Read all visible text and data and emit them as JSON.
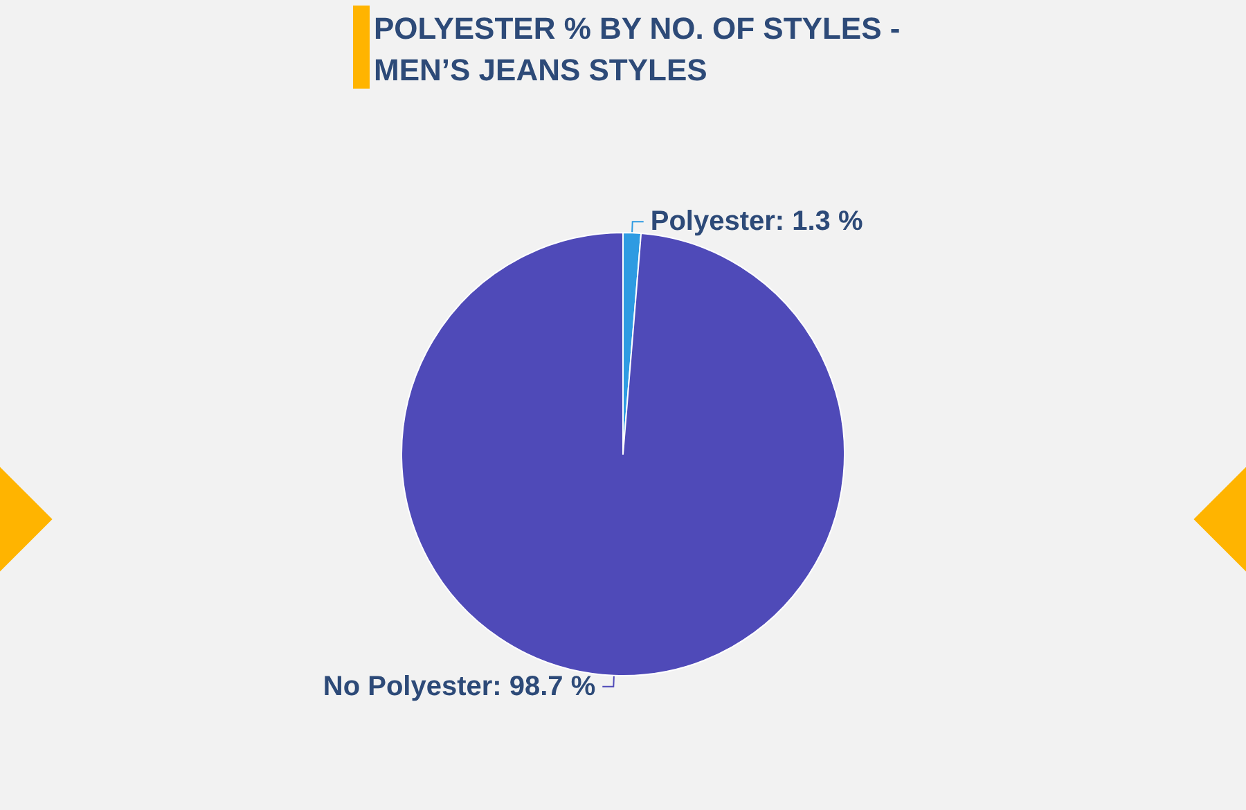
{
  "chart_data": {
    "type": "pie",
    "title": "POLYESTER % BY NO. OF STYLES - MEN’S JEANS STYLES",
    "categories": [
      "Polyester",
      "No Polyester"
    ],
    "values": [
      1.3,
      98.7
    ],
    "value_labels": [
      "1.3 %",
      "98.7 %"
    ],
    "colors": [
      "#2e9be2",
      "#4f4ab8"
    ]
  }
}
